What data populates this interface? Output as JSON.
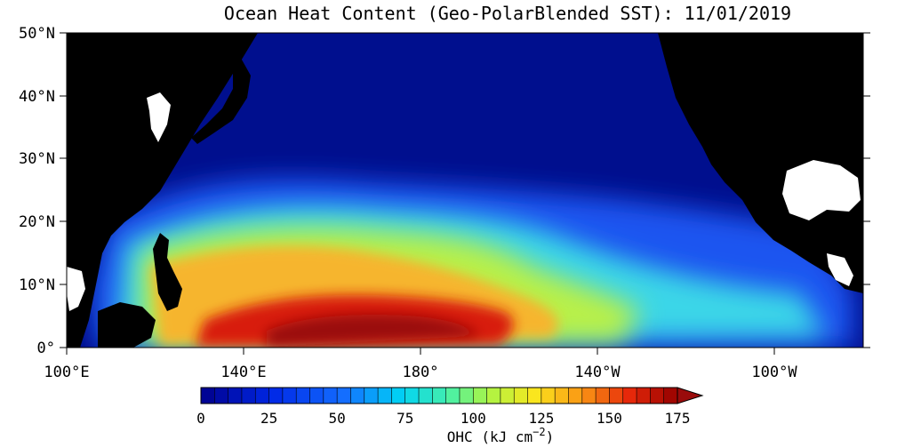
{
  "title": "Ocean Heat Content (Geo-PolarBlended SST): 11/01/2019",
  "lat_labels": [
    "0°",
    "10°N",
    "20°N",
    "30°N",
    "40°N",
    "50°N"
  ],
  "lon_labels": [
    "100°E",
    "140°E",
    "180°",
    "140°W",
    "100°W"
  ],
  "colorbar": {
    "ticks": [
      "0",
      "25",
      "50",
      "75",
      "100",
      "125",
      "150",
      "175"
    ],
    "label_main": "OHC (kJ cm",
    "label_sup": "−2",
    "label_end": ")",
    "min": 0,
    "max": 175
  },
  "colors": {
    "land": "#000000",
    "missing": "#ffffff",
    "ocean_low": "#000f8e",
    "frame": "#000000"
  },
  "chart_data": {
    "type": "heatmap",
    "title": "Ocean Heat Content (Geo-PolarBlended SST): 11/01/2019",
    "lat_range": [
      0,
      50
    ],
    "lon_range": [
      "100°E",
      "80°W"
    ],
    "units": "kJ cm-2",
    "value_range": [
      0,
      175
    ]
  }
}
